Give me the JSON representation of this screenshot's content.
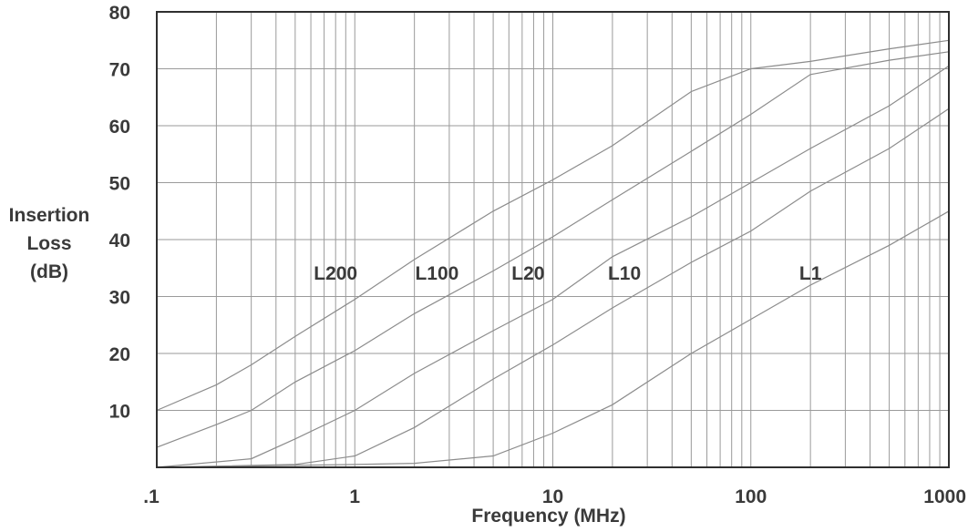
{
  "chart_data": {
    "type": "line",
    "title": "",
    "xlabel": "Frequency (MHz)",
    "ylabel_lines": [
      "Insertion",
      "Loss",
      "(dB)"
    ],
    "x_scale": "log",
    "xlim": [
      0.1,
      1000
    ],
    "ylim": [
      0,
      80
    ],
    "grid": true,
    "legend": "none",
    "x_ticks": [
      {
        "value": 0.1,
        "label": ".1"
      },
      {
        "value": 1,
        "label": "1"
      },
      {
        "value": 10,
        "label": "10"
      },
      {
        "value": 100,
        "label": "100"
      },
      {
        "value": 1000,
        "label": "1000"
      }
    ],
    "y_ticks": [
      {
        "value": 10,
        "label": "10"
      },
      {
        "value": 20,
        "label": "20"
      },
      {
        "value": 30,
        "label": "30"
      },
      {
        "value": 40,
        "label": "40"
      },
      {
        "value": 50,
        "label": "50"
      },
      {
        "value": 60,
        "label": "60"
      },
      {
        "value": 70,
        "label": "70"
      },
      {
        "value": 80,
        "label": "80"
      }
    ],
    "series": [
      {
        "name": "L200",
        "label_at": [
          0.8,
          33
        ],
        "x": [
          0.1,
          0.2,
          0.3,
          0.5,
          1,
          2,
          5,
          10,
          20,
          50,
          100,
          200,
          500,
          1000
        ],
        "y": [
          10,
          14.5,
          18,
          23,
          29.5,
          36.5,
          45,
          50.5,
          56.5,
          66,
          70,
          71.3,
          73.5,
          75
        ]
      },
      {
        "name": "L100",
        "label_at": [
          2.6,
          33
        ],
        "x": [
          0.1,
          0.2,
          0.3,
          0.5,
          1,
          2,
          5,
          10,
          20,
          50,
          100,
          200,
          500,
          1000
        ],
        "y": [
          3.5,
          7.5,
          10,
          15,
          20.5,
          27,
          34.5,
          40.5,
          47,
          55.5,
          62,
          69,
          71.5,
          73
        ]
      },
      {
        "name": "L20",
        "label_at": [
          7.5,
          33
        ],
        "x": [
          0.1,
          0.3,
          0.5,
          1,
          2,
          5,
          10,
          20,
          50,
          100,
          200,
          500,
          1000
        ],
        "y": [
          0,
          1.5,
          5,
          10,
          16.5,
          24,
          29.5,
          37,
          44,
          50,
          56,
          63.5,
          70.5
        ]
      },
      {
        "name": "L10",
        "label_at": [
          23,
          33
        ],
        "x": [
          0.1,
          0.5,
          1,
          2,
          5,
          10,
          20,
          50,
          100,
          200,
          500,
          1000
        ],
        "y": [
          0,
          0.5,
          2,
          7,
          15.5,
          21.5,
          28,
          36,
          41.5,
          48.5,
          56,
          63
        ]
      },
      {
        "name": "L1",
        "label_at": [
          200,
          33
        ],
        "x": [
          0.1,
          1,
          2,
          5,
          10,
          20,
          50,
          100,
          200,
          500,
          1000
        ],
        "y": [
          0,
          0.5,
          0.7,
          2,
          6,
          11,
          20,
          26,
          32,
          39,
          45
        ]
      }
    ]
  }
}
